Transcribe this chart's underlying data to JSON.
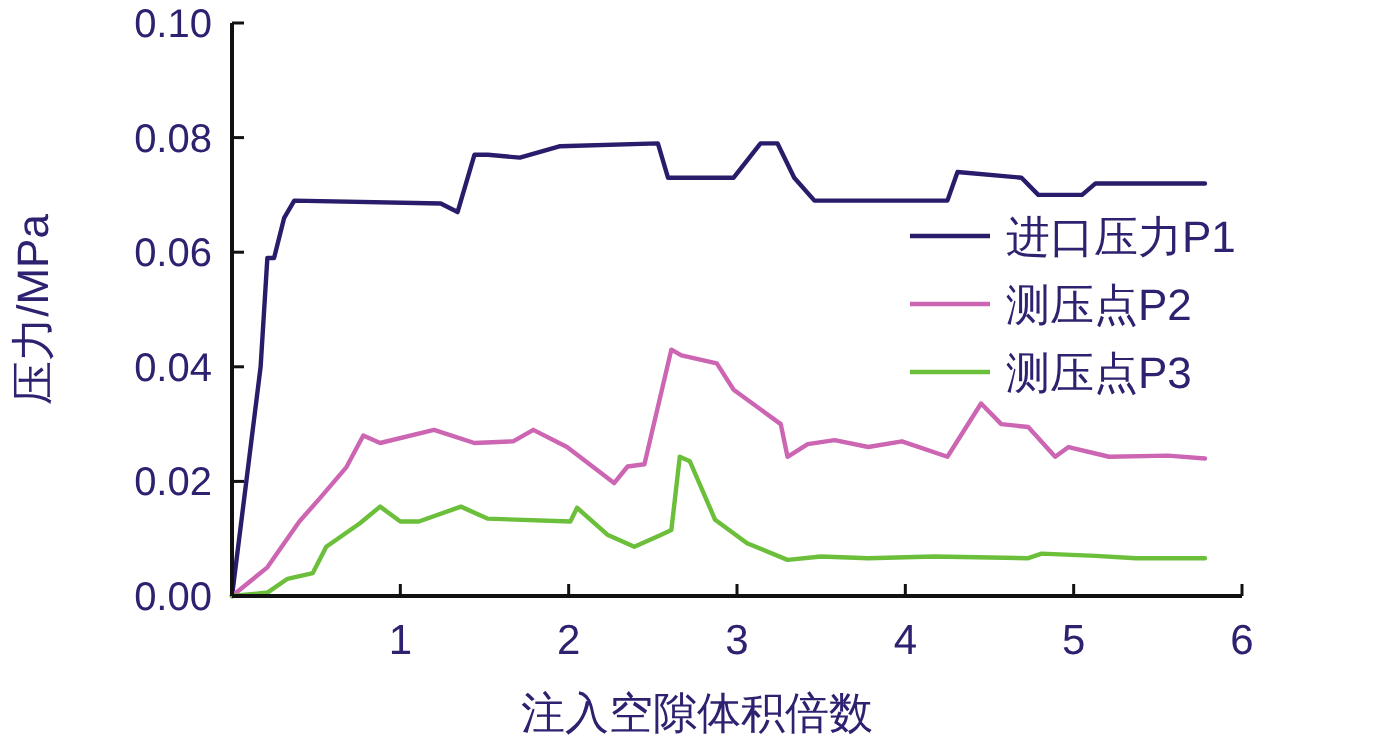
{
  "chart_data": {
    "type": "line",
    "xlabel": "注入空隙体积倍数",
    "ylabel": "压力/MPa",
    "xlim": [
      0,
      6
    ],
    "xticks": [
      1,
      2,
      3,
      4,
      5,
      6
    ],
    "ylim": [
      0,
      0.1
    ],
    "yticks": [
      {
        "value": 0,
        "label": "0.00"
      },
      {
        "value": 0.02,
        "label": "0.02"
      },
      {
        "value": 0.04,
        "label": "0.04"
      },
      {
        "value": 0.06,
        "label": "0.06"
      },
      {
        "value": 0.08,
        "label": "0.08"
      },
      {
        "value": 0.1,
        "label": "0.10"
      }
    ],
    "grid": false,
    "legend": "right",
    "marker": "none",
    "line_style": "solid",
    "series": [
      {
        "name": "进口压力P1",
        "color": "#2b1b6b",
        "x": [
          0,
          0.17,
          0.21,
          0.25,
          0.31,
          0.37,
          1.24,
          1.34,
          1.44,
          1.52,
          1.71,
          1.95,
          2.53,
          2.59,
          2.98,
          3.14,
          3.24,
          3.34,
          3.46,
          4.25,
          4.31,
          4.69,
          4.79,
          5.05,
          5.13,
          5.78
        ],
        "values": [
          0,
          0.04,
          0.059,
          0.059,
          0.066,
          0.069,
          0.0685,
          0.067,
          0.077,
          0.077,
          0.0765,
          0.0785,
          0.079,
          0.073,
          0.073,
          0.079,
          0.079,
          0.073,
          0.069,
          0.069,
          0.074,
          0.073,
          0.07,
          0.07,
          0.072,
          0.072
        ]
      },
      {
        "name": "测压点P2",
        "color": "#cc66b3",
        "x": [
          0,
          0.21,
          0.4,
          0.52,
          0.68,
          0.78,
          0.88,
          1.2,
          1.44,
          1.67,
          1.79,
          1.99,
          2.27,
          2.35,
          2.45,
          2.61,
          2.67,
          2.88,
          2.98,
          3.26,
          3.3,
          3.42,
          3.58,
          3.78,
          3.98,
          4.25,
          4.45,
          4.57,
          4.73,
          4.89,
          4.97,
          5.21,
          5.56,
          5.78
        ],
        "values": [
          0,
          0.005,
          0.013,
          0.017,
          0.0225,
          0.028,
          0.0267,
          0.029,
          0.0267,
          0.027,
          0.029,
          0.026,
          0.0197,
          0.0226,
          0.023,
          0.043,
          0.042,
          0.0406,
          0.036,
          0.03,
          0.0243,
          0.0265,
          0.0272,
          0.026,
          0.027,
          0.0243,
          0.0336,
          0.03,
          0.0295,
          0.0243,
          0.026,
          0.0243,
          0.0245,
          0.024
        ]
      },
      {
        "name": "测压点P3",
        "color": "#6cbf3a",
        "x": [
          0,
          0.21,
          0.33,
          0.48,
          0.56,
          0.76,
          0.88,
          1.0,
          1.11,
          1.36,
          1.52,
          2.01,
          2.05,
          2.23,
          2.39,
          2.55,
          2.61,
          2.66,
          2.72,
          2.87,
          3.06,
          3.3,
          3.5,
          3.78,
          4.17,
          4.73,
          4.81,
          5.13,
          5.37,
          5.78
        ],
        "values": [
          0,
          0.0006,
          0.003,
          0.004,
          0.0086,
          0.0127,
          0.0156,
          0.013,
          0.013,
          0.0156,
          0.0135,
          0.013,
          0.0154,
          0.0107,
          0.0086,
          0.0107,
          0.0115,
          0.0243,
          0.0235,
          0.0133,
          0.0092,
          0.0063,
          0.0069,
          0.0066,
          0.0069,
          0.0066,
          0.0074,
          0.007,
          0.0066,
          0.0066
        ]
      }
    ]
  }
}
